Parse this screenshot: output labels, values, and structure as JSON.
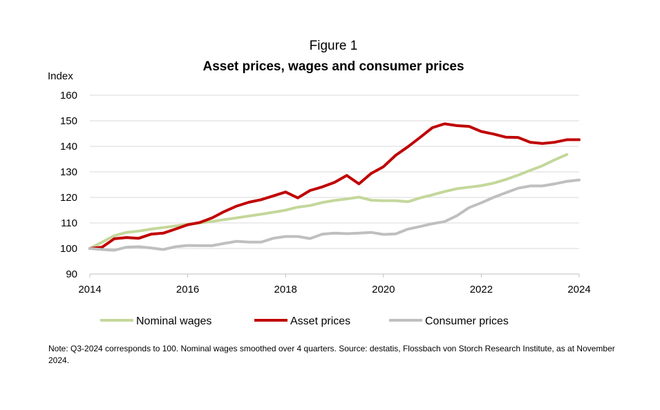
{
  "figure": {
    "label": "Figure 1",
    "title": "Asset prices, wages and consumer prices",
    "note": "Note: Q3-2024 corresponds to 100. Nominal wages smoothed over 4 quarters. Source: destatis, Flossbach von Storch Research Institute, as at November 2024."
  },
  "chart_data": {
    "type": "line",
    "ylabel": "Index",
    "xlabel": "",
    "xlim": [
      2014,
      2024
    ],
    "ylim": [
      90,
      160
    ],
    "xticks": [
      "2014",
      "2016",
      "2018",
      "2020",
      "2022",
      "2024"
    ],
    "yticks": [
      "90",
      "100",
      "110",
      "120",
      "130",
      "140",
      "150",
      "160"
    ],
    "grid": "horizontal",
    "legend_position": "bottom",
    "series": [
      {
        "name": "Nominal wages",
        "color": "#c4d79b",
        "x": [
          2014.0,
          2014.25,
          2014.5,
          2014.75,
          2015.0,
          2015.25,
          2015.5,
          2015.75,
          2016.0,
          2016.25,
          2016.5,
          2016.75,
          2017.0,
          2017.25,
          2017.5,
          2017.75,
          2018.0,
          2018.25,
          2018.5,
          2018.75,
          2019.0,
          2019.25,
          2019.5,
          2019.75,
          2020.0,
          2020.25,
          2020.5,
          2020.75,
          2021.0,
          2021.25,
          2021.5,
          2021.75,
          2022.0,
          2022.25,
          2022.5,
          2022.75,
          2023.0,
          2023.25,
          2023.5,
          2023.75
        ],
        "values": [
          100.0,
          102.5,
          105.0,
          106.3,
          106.8,
          107.6,
          108.2,
          108.8,
          109.5,
          110.0,
          110.6,
          111.3,
          112.0,
          112.7,
          113.4,
          114.2,
          115.0,
          116.2,
          116.8,
          118.0,
          118.8,
          119.4,
          120.1,
          118.9,
          118.7,
          118.7,
          118.3,
          119.8,
          121.0,
          122.3,
          123.4,
          124.0,
          124.6,
          125.6,
          127.0,
          128.7,
          130.6,
          132.4,
          134.7,
          136.8
        ]
      },
      {
        "name": "Asset prices",
        "color": "#c00000",
        "x": [
          2014.0,
          2014.25,
          2014.5,
          2014.75,
          2015.0,
          2015.25,
          2015.5,
          2015.75,
          2016.0,
          2016.25,
          2016.5,
          2016.75,
          2017.0,
          2017.25,
          2017.5,
          2017.75,
          2018.0,
          2018.25,
          2018.5,
          2018.75,
          2019.0,
          2019.25,
          2019.5,
          2019.75,
          2020.0,
          2020.25,
          2020.5,
          2020.75,
          2021.0,
          2021.25,
          2021.5,
          2021.75,
          2022.0,
          2022.25,
          2022.5,
          2022.75,
          2023.0,
          2023.25,
          2023.5,
          2023.75,
          2024.0
        ],
        "values": [
          100.0,
          100.5,
          103.8,
          104.3,
          104.0,
          105.6,
          106.0,
          107.6,
          109.3,
          110.2,
          112.0,
          114.5,
          116.6,
          118.1,
          119.1,
          120.6,
          122.1,
          119.8,
          122.7,
          124.1,
          125.9,
          128.6,
          125.3,
          129.4,
          132.0,
          136.5,
          139.8,
          143.5,
          147.3,
          148.8,
          148.1,
          147.8,
          145.8,
          144.8,
          143.6,
          143.5,
          141.6,
          141.1,
          141.6,
          142.6,
          142.6
        ]
      },
      {
        "name": "Consumer prices",
        "color": "#bfbfbf",
        "x": [
          2014.0,
          2014.25,
          2014.5,
          2014.75,
          2015.0,
          2015.25,
          2015.5,
          2015.75,
          2016.0,
          2016.25,
          2016.5,
          2016.75,
          2017.0,
          2017.25,
          2017.5,
          2017.75,
          2018.0,
          2018.25,
          2018.5,
          2018.75,
          2019.0,
          2019.25,
          2019.5,
          2019.75,
          2020.0,
          2020.25,
          2020.5,
          2020.75,
          2021.0,
          2021.25,
          2021.5,
          2021.75,
          2022.0,
          2022.25,
          2022.5,
          2022.75,
          2023.0,
          2023.25,
          2023.5,
          2023.75,
          2024.0
        ],
        "values": [
          100.0,
          99.6,
          99.3,
          100.5,
          100.7,
          100.2,
          99.6,
          100.7,
          101.2,
          101.1,
          101.1,
          102.0,
          102.8,
          102.5,
          102.5,
          104.0,
          104.7,
          104.7,
          103.9,
          105.6,
          106.0,
          105.8,
          106.0,
          106.3,
          105.5,
          105.7,
          107.6,
          108.6,
          109.7,
          110.5,
          112.8,
          116.0,
          117.9,
          120.0,
          121.8,
          123.6,
          124.5,
          124.5,
          125.3,
          126.3,
          126.8
        ]
      }
    ]
  }
}
